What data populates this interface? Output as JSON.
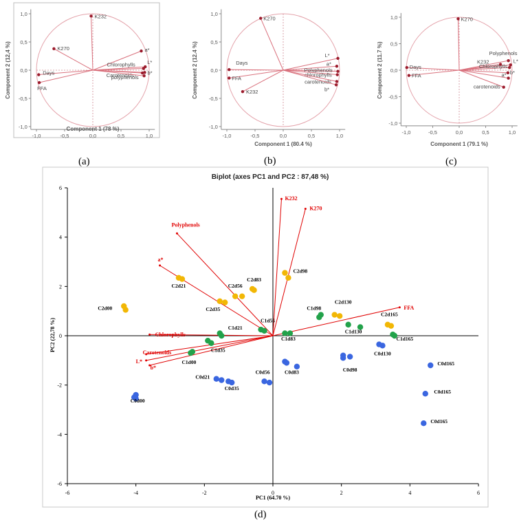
{
  "panel_labels": [
    "(a)",
    "(b)",
    "(c)",
    "(d)"
  ],
  "colors": {
    "circle": "#e4a3ab",
    "loading_line": "#d9707c",
    "loading_point": "#9b1b2c",
    "zero_line": "#d08a93",
    "biplot_vector": "#e00000",
    "series_C0": "#3a66e0",
    "series_C1": "#22a24a",
    "series_C2": "#f2b705"
  },
  "chart_data": [
    {
      "panel": "(a)",
      "type": "scatter",
      "subtype": "correlation-circle",
      "xlabel": "Component 1 (78 %)",
      "ylabel": "Component 2 (12,4 %)",
      "xlim": [
        -1.0,
        1.0
      ],
      "ylim": [
        -1.0,
        1.0
      ],
      "xticks": [
        "-1,0",
        "-0,5",
        "0,0",
        "0,5",
        "1,0"
      ],
      "yticks": [
        "-1,0",
        "-0,5",
        "0,0",
        "0,5",
        "1,0"
      ],
      "points": [
        {
          "label": "K232",
          "x": -0.03,
          "y": 0.96
        },
        {
          "label": "K270",
          "x": -0.69,
          "y": 0.38
        },
        {
          "label": "a*",
          "x": 0.86,
          "y": 0.34
        },
        {
          "label": "L*",
          "x": 0.93,
          "y": 0.06
        },
        {
          "label": "Chlorophylls",
          "x": 0.9,
          "y": 0.03
        },
        {
          "label": "b*",
          "x": 0.92,
          "y": -0.04
        },
        {
          "label": "Carotenoids",
          "x": 0.88,
          "y": -0.05
        },
        {
          "label": "polyphenols",
          "x": 0.91,
          "y": -0.1
        },
        {
          "label": "Days",
          "x": -0.96,
          "y": -0.08
        },
        {
          "label": "FFA",
          "x": -0.95,
          "y": -0.22
        }
      ]
    },
    {
      "panel": "(b)",
      "type": "scatter",
      "subtype": "correlation-circle",
      "xlabel": "Component 1 (80.4 %)",
      "ylabel": "Component 2 (12.4 %)",
      "xlim": [
        -1.0,
        1.0
      ],
      "ylim": [
        -1.0,
        1.0
      ],
      "xticks": [
        "-1,0",
        "-0,5",
        "0,0",
        "0,5",
        "1,0"
      ],
      "yticks": [
        "-1,0",
        "-0,5",
        "0,0",
        "0,5",
        "1,0"
      ],
      "points": [
        {
          "label": "K270",
          "x": -0.4,
          "y": 0.92
        },
        {
          "label": "L*",
          "x": 0.97,
          "y": 0.21
        },
        {
          "label": "a*",
          "x": 0.95,
          "y": 0.07
        },
        {
          "label": "Polyphenols",
          "x": 0.97,
          "y": -0.02
        },
        {
          "label": "chlorophylls",
          "x": 0.96,
          "y": -0.08
        },
        {
          "label": "carotenoids",
          "x": 0.95,
          "y": -0.2
        },
        {
          "label": "b*",
          "x": 0.94,
          "y": -0.26
        },
        {
          "label": "Days",
          "x": -0.96,
          "y": 0.01
        },
        {
          "label": "FFA",
          "x": -0.96,
          "y": -0.14
        },
        {
          "label": "K232",
          "x": -0.72,
          "y": -0.38
        }
      ]
    },
    {
      "panel": "(c)",
      "type": "scatter",
      "subtype": "correlation-circle",
      "xlabel": "Component 1 (79.1 %)",
      "ylabel": "Component 2 (11.7 %)",
      "xlim": [
        -1.0,
        1.0
      ],
      "ylim": [
        -1.0,
        1.0
      ],
      "xticks": [
        "-1,0",
        "-0,5",
        "0,0",
        "0,5",
        "1,0"
      ],
      "yticks": [
        "-1,0",
        "-0,5",
        "0,0",
        "0,5",
        "1,0"
      ],
      "points": [
        {
          "label": "K270",
          "x": -0.02,
          "y": 0.97
        },
        {
          "label": "Polyphenols",
          "x": 0.93,
          "y": 0.18
        },
        {
          "label": "K232",
          "x": 0.78,
          "y": 0.11
        },
        {
          "label": "L*",
          "x": 0.97,
          "y": 0.1
        },
        {
          "label": "Chlorophylls",
          "x": 0.95,
          "y": 0.05
        },
        {
          "label": "b*",
          "x": 0.92,
          "y": -0.05
        },
        {
          "label": "a*",
          "x": 0.93,
          "y": -0.15
        },
        {
          "label": "carotenoids",
          "x": 0.84,
          "y": -0.32
        },
        {
          "label": "Days",
          "x": -0.99,
          "y": 0.05
        },
        {
          "label": "FFA",
          "x": -0.95,
          "y": -0.1
        }
      ]
    },
    {
      "panel": "(d)",
      "type": "scatter",
      "subtype": "biplot",
      "title": "Biplot (axes PC1 and PC2 : 87,48 %)",
      "xlabel": "PC1 (64.70 %)",
      "ylabel": "PC2 (22,78 %)",
      "xlim": [
        -6,
        6
      ],
      "ylim": [
        -6,
        6
      ],
      "xticks": [
        "-6",
        "-4",
        "-2",
        "0",
        "2",
        "4",
        "6"
      ],
      "yticks": [
        "-6",
        "-4",
        "-2",
        "0",
        "2",
        "4",
        "6"
      ],
      "vectors": [
        {
          "label": "K232",
          "x": 0.25,
          "y": 5.55
        },
        {
          "label": "K270",
          "x": 0.95,
          "y": 5.15
        },
        {
          "label": "Polyphenols",
          "x": -2.8,
          "y": 4.15
        },
        {
          "label": "a*",
          "x": -3.3,
          "y": 2.85
        },
        {
          "label": "FFA",
          "x": 3.7,
          "y": 1.15
        },
        {
          "label": "Chlorophylls",
          "x": -3.6,
          "y": 0.05
        },
        {
          "label": "Carotenoids",
          "x": -3.7,
          "y": -0.75
        },
        {
          "label": "L*",
          "x": -3.7,
          "y": -1.0
        },
        {
          "label": "b*",
          "x": -3.6,
          "y": -1.2
        }
      ],
      "series": [
        {
          "group": "C0",
          "points": [
            {
              "x": -4.0,
              "y": -2.4
            },
            {
              "x": -4.05,
              "y": -2.5
            },
            {
              "x": -4.0,
              "y": -2.55
            },
            {
              "x": -1.65,
              "y": -1.75
            },
            {
              "x": -1.5,
              "y": -1.8
            },
            {
              "x": -1.3,
              "y": -1.85
            },
            {
              "x": -1.2,
              "y": -1.9
            },
            {
              "x": -0.25,
              "y": -1.85
            },
            {
              "x": -0.1,
              "y": -1.9
            },
            {
              "x": 0.35,
              "y": -1.05
            },
            {
              "x": 0.4,
              "y": -1.1
            },
            {
              "x": 0.7,
              "y": -1.25
            },
            {
              "x": 2.05,
              "y": -0.8
            },
            {
              "x": 2.05,
              "y": -0.9
            },
            {
              "x": 2.25,
              "y": -0.85
            },
            {
              "x": 3.1,
              "y": -0.35
            },
            {
              "x": 3.2,
              "y": -0.4
            },
            {
              "x": 4.6,
              "y": -1.2
            },
            {
              "x": 4.45,
              "y": -2.35
            },
            {
              "x": 4.4,
              "y": -3.55
            }
          ],
          "labels": [
            {
              "text": "C0d00",
              "x": -3.95,
              "y": -2.7
            },
            {
              "text": "C0d21",
              "x": -2.05,
              "y": -1.75
            },
            {
              "text": "C0d35",
              "x": -1.2,
              "y": -2.2
            },
            {
              "text": "C0d56",
              "x": -0.3,
              "y": -1.55
            },
            {
              "text": "C0d83",
              "x": 0.55,
              "y": -1.55
            },
            {
              "text": "C0d98",
              "x": 2.25,
              "y": -1.45
            },
            {
              "text": "C0d130",
              "x": 3.2,
              "y": -0.8
            },
            {
              "text": "C0d165",
              "x": 5.05,
              "y": -1.2
            },
            {
              "text": "C0d165",
              "x": 4.95,
              "y": -2.35
            },
            {
              "text": "C0d165",
              "x": 4.85,
              "y": -3.55
            }
          ]
        },
        {
          "group": "C1",
          "points": [
            {
              "x": -2.4,
              "y": -0.7
            },
            {
              "x": -2.35,
              "y": -0.65
            },
            {
              "x": -1.9,
              "y": -0.2
            },
            {
              "x": -1.8,
              "y": -0.3
            },
            {
              "x": -1.55,
              "y": 0.1
            },
            {
              "x": -1.5,
              "y": 0.0
            },
            {
              "x": -0.35,
              "y": 0.25
            },
            {
              "x": -0.25,
              "y": 0.2
            },
            {
              "x": 0.35,
              "y": 0.1
            },
            {
              "x": 0.5,
              "y": 0.1
            },
            {
              "x": 1.35,
              "y": 0.75
            },
            {
              "x": 1.4,
              "y": 0.85
            },
            {
              "x": 2.2,
              "y": 0.45
            },
            {
              "x": 2.55,
              "y": 0.35
            },
            {
              "x": 3.5,
              "y": 0.05
            },
            {
              "x": 3.55,
              "y": 0.0
            }
          ],
          "labels": [
            {
              "text": "C1d00",
              "x": -2.45,
              "y": -1.15
            },
            {
              "text": "C1d35",
              "x": -1.6,
              "y": -0.65
            },
            {
              "text": "C1d21",
              "x": -1.1,
              "y": 0.25
            },
            {
              "text": "C1d56",
              "x": -0.15,
              "y": 0.55
            },
            {
              "text": "C1d83",
              "x": 0.45,
              "y": -0.2
            },
            {
              "text": "C1d98",
              "x": 1.2,
              "y": 1.05
            },
            {
              "text": "C1d130",
              "x": 2.35,
              "y": 0.1
            },
            {
              "text": "C1d165",
              "x": 3.85,
              "y": -0.2
            }
          ]
        },
        {
          "group": "C2",
          "points": [
            {
              "x": -4.35,
              "y": 1.2
            },
            {
              "x": -4.3,
              "y": 1.05
            },
            {
              "x": -2.75,
              "y": 2.35
            },
            {
              "x": -2.65,
              "y": 2.3
            },
            {
              "x": -1.55,
              "y": 1.4
            },
            {
              "x": -1.4,
              "y": 1.35
            },
            {
              "x": -1.1,
              "y": 1.6
            },
            {
              "x": -0.9,
              "y": 1.6
            },
            {
              "x": -0.6,
              "y": 1.9
            },
            {
              "x": -0.55,
              "y": 1.85
            },
            {
              "x": 0.35,
              "y": 2.55
            },
            {
              "x": 0.45,
              "y": 2.35
            },
            {
              "x": 1.8,
              "y": 0.85
            },
            {
              "x": 1.95,
              "y": 0.8
            },
            {
              "x": 3.35,
              "y": 0.45
            },
            {
              "x": 3.45,
              "y": 0.4
            }
          ],
          "labels": [
            {
              "text": "C2d00",
              "x": -4.9,
              "y": 1.05
            },
            {
              "text": "C2d21",
              "x": -2.75,
              "y": 1.95
            },
            {
              "text": "C2d35",
              "x": -1.75,
              "y": 1.0
            },
            {
              "text": "C2d56",
              "x": -1.1,
              "y": 1.95
            },
            {
              "text": "C2d83",
              "x": -0.55,
              "y": 2.2
            },
            {
              "text": "C2d98",
              "x": 0.8,
              "y": 2.55
            },
            {
              "text": "C2d130",
              "x": 2.05,
              "y": 1.3
            },
            {
              "text": "C2d165",
              "x": 3.4,
              "y": 0.8
            }
          ]
        }
      ]
    }
  ]
}
